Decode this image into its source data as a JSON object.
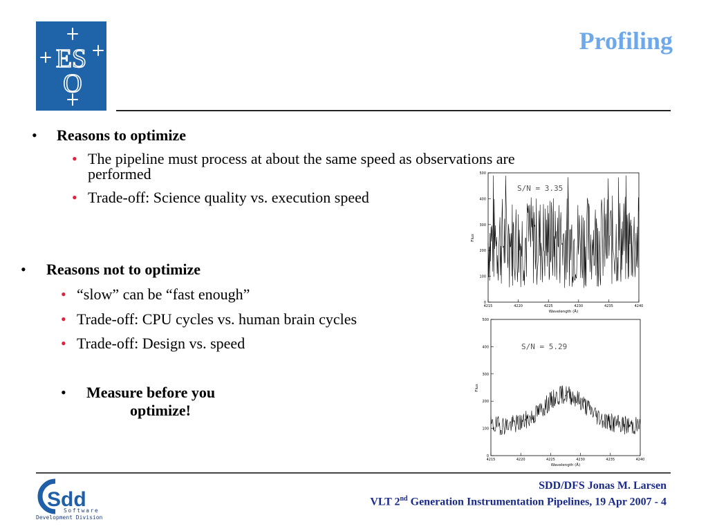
{
  "header": {
    "title": "Profiling",
    "logo_text": [
      "ES",
      "O"
    ]
  },
  "sections": {
    "optimize": {
      "heading": "Reasons to optimize",
      "items": [
        "The pipeline must process at about the same speed as observations are",
        "performed",
        "Trade-off:  Science quality vs. execution speed"
      ]
    },
    "not_optimize": {
      "heading": "Reasons not to optimize",
      "items": [
        "“slow” can be “fast enough”",
        "Trade-off: CPU cycles vs. human brain cycles",
        "Trade-off: Design vs. speed"
      ]
    },
    "measure": {
      "line1": "Measure before you",
      "line2": "optimize!"
    }
  },
  "bullet_glyph": "•",
  "plots": [
    {
      "annotation": "S/N  =  3.35",
      "xlabel": "Wavelength (Å)",
      "ylabel": "Flux",
      "xticks": [
        "4215",
        "4220",
        "4225",
        "4230",
        "4235",
        "4240"
      ],
      "yticks": [
        "0",
        "100",
        "200",
        "300",
        "400",
        "500"
      ]
    },
    {
      "annotation": "S/N  =  5.29",
      "xlabel": "Wavelength (Å)",
      "ylabel": "Flux",
      "xticks": [
        "4215",
        "4220",
        "4225",
        "4230",
        "4235",
        "4240"
      ],
      "yticks": [
        "0",
        "100",
        "200",
        "300",
        "400",
        "500"
      ]
    }
  ],
  "footer": {
    "sdd_logo": {
      "letters": "Sdd",
      "line1": "Software",
      "line2": "Development Division"
    },
    "author": "SDD/DFS Jonas M. Larsen",
    "talk_prefix": "VLT 2",
    "talk_sup": "nd",
    "talk_suffix": " Generation Instrumentation Pipelines, 19 Apr 2007 - 4"
  },
  "colors": {
    "title": "#6fa8e8",
    "eso_blue": "#1f63a8",
    "sub_bullet": "#e0203a",
    "footer_text": "#1a2a8a"
  }
}
